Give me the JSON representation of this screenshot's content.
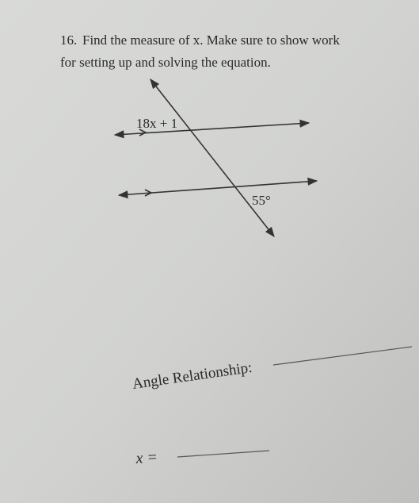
{
  "question": {
    "number": "16.",
    "lines": [
      "Find the measure of x. Make sure to show work",
      "for setting up and solving the equation."
    ]
  },
  "diagram": {
    "labels": [
      "18x + 1",
      "55°"
    ]
  },
  "answers": {
    "relationship_label": "Angle Relationship:",
    "x_label": "x ="
  }
}
